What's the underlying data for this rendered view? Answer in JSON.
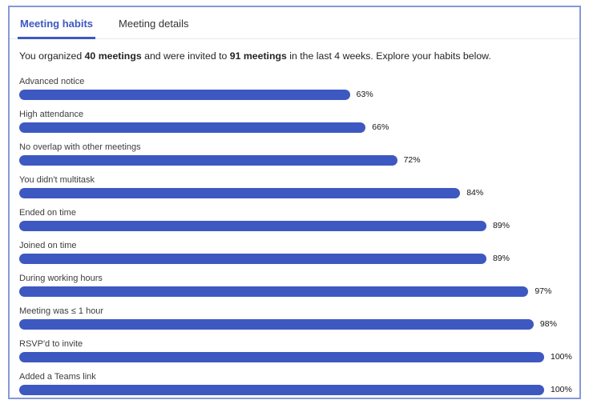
{
  "header": {
    "tabs": [
      {
        "label": "Meeting habits",
        "active": true
      },
      {
        "label": "Meeting details",
        "active": false
      }
    ]
  },
  "intro": {
    "pre": "You organized ",
    "organized_count": "40 meetings",
    "mid": " and were invited to ",
    "invited_count": "91 meetings",
    "post": " in the last 4 weeks. Explore your habits below."
  },
  "chart_data": {
    "type": "bar",
    "orientation": "horizontal",
    "title": "",
    "categories": [
      "Advanced notice",
      "High attendance",
      "No overlap with other meetings",
      "You didn't multitask",
      "Ended on time",
      "Joined on time",
      "During working hours",
      "Meeting was ≤ 1 hour",
      "RSVP'd to invite",
      "Added a Teams link"
    ],
    "values": [
      63,
      66,
      72,
      84,
      89,
      89,
      97,
      98,
      100,
      100
    ],
    "value_suffix": "%",
    "xlim": [
      0,
      100
    ],
    "bar_color": "#3d58c0",
    "grid": false,
    "legend": false,
    "value_labels": "end-of-bar"
  },
  "colors": {
    "accent": "#3d58c0",
    "card_border": "#8598d8",
    "tab_divider": "#e8e8e8",
    "label_text": "#3d3d3d",
    "value_text": "#141414"
  }
}
